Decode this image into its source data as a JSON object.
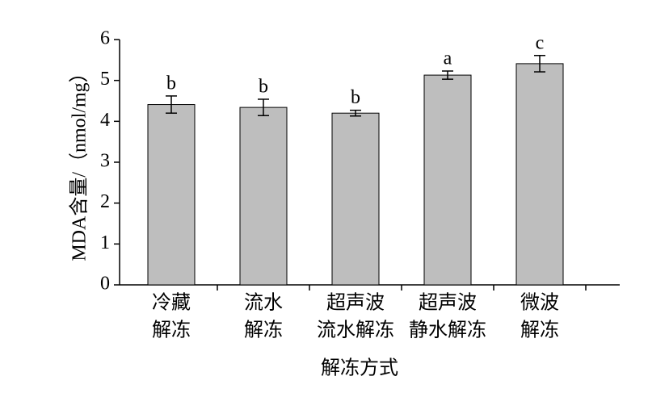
{
  "chart_data": {
    "type": "bar",
    "y_label": "MDA含量/（nmol/mg）",
    "x_label": "解冻方式",
    "categories": [
      [
        "冷藏",
        "解冻"
      ],
      [
        "流水",
        "解冻"
      ],
      [
        "超声波",
        "流水解冻"
      ],
      [
        "超声波",
        "静水解冻"
      ],
      [
        "微波",
        "解冻"
      ]
    ],
    "values": [
      4.41,
      4.34,
      4.2,
      5.13,
      5.41
    ],
    "errors": [
      0.21,
      0.2,
      0.07,
      0.1,
      0.2
    ],
    "annotations": [
      "b",
      "b",
      "b",
      "a",
      "c"
    ],
    "color": "#bebebe",
    "ylim": [
      0,
      6
    ],
    "yticks": [
      0,
      1,
      2,
      3,
      4,
      5,
      6
    ]
  }
}
